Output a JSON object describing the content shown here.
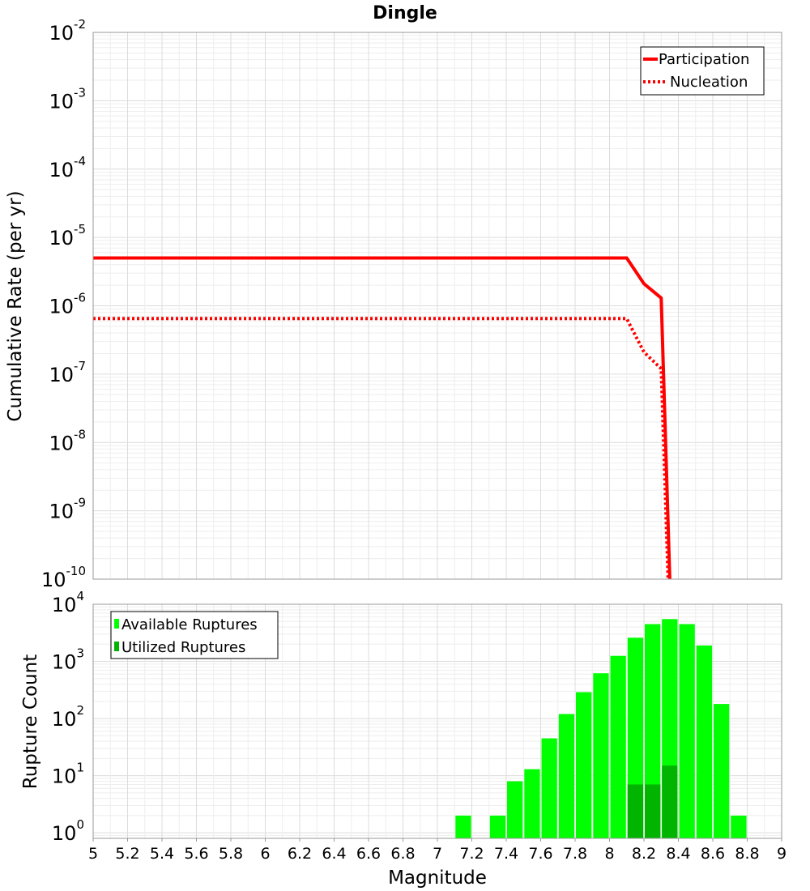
{
  "chart_data": [
    {
      "type": "line",
      "title": "Dingle",
      "xlabel": "Magnitude",
      "ylabel": "Cumulative Rate (per yr)",
      "yscale": "log",
      "xlim": [
        5,
        9
      ],
      "ylim": [
        1e-10,
        0.01
      ],
      "y_ticks": [
        {
          "base": "10",
          "exp": "-2"
        },
        {
          "base": "10",
          "exp": "-3"
        },
        {
          "base": "10",
          "exp": "-4"
        },
        {
          "base": "10",
          "exp": "-5"
        },
        {
          "base": "10",
          "exp": "-6"
        },
        {
          "base": "10",
          "exp": "-7"
        },
        {
          "base": "10",
          "exp": "-8"
        },
        {
          "base": "10",
          "exp": "-9"
        },
        {
          "base": "10",
          "exp": "-10"
        }
      ],
      "legend": [
        "Participation",
        "Nucleation"
      ],
      "legend_position": "top-right",
      "grid": true,
      "series": [
        {
          "name": "Participation",
          "style": "solid",
          "color": "#ff0000",
          "x": [
            5.0,
            8.1,
            8.2,
            8.3,
            8.35
          ],
          "y": [
            5e-06,
            5e-06,
            2.1e-06,
            1.3e-06,
            1e-10
          ]
        },
        {
          "name": "Nucleation",
          "style": "dotted",
          "color": "#ff0000",
          "x": [
            5.0,
            8.1,
            8.2,
            8.3,
            8.34
          ],
          "y": [
            6.5e-07,
            6.5e-07,
            2.1e-07,
            1.2e-07,
            1e-10
          ]
        }
      ]
    },
    {
      "type": "bar",
      "xlabel": "Magnitude",
      "ylabel": "Rupture Count",
      "yscale": "log",
      "xlim": [
        5,
        9
      ],
      "ylim": [
        0.8,
        10000
      ],
      "x_ticks": [
        "5",
        "5.2",
        "5.4",
        "5.6",
        "5.8",
        "6",
        "6.2",
        "6.4",
        "6.6",
        "6.8",
        "7",
        "7.2",
        "7.4",
        "7.6",
        "7.8",
        "8",
        "8.2",
        "8.4",
        "8.6",
        "8.8",
        "9"
      ],
      "y_ticks": [
        {
          "base": "10",
          "exp": "4"
        },
        {
          "base": "10",
          "exp": "3"
        },
        {
          "base": "10",
          "exp": "2"
        },
        {
          "base": "10",
          "exp": "1"
        },
        {
          "base": "10",
          "exp": "0"
        }
      ],
      "legend": [
        "Available Ruptures",
        "Utilized Ruptures"
      ],
      "legend_position": "top-left",
      "grid": true,
      "bar_width": 0.1,
      "series": [
        {
          "name": "Available Ruptures",
          "color": "#00ff00",
          "x": [
            7.15,
            7.35,
            7.45,
            7.55,
            7.65,
            7.75,
            7.85,
            7.95,
            8.05,
            8.15,
            8.25,
            8.35,
            8.45,
            8.55,
            8.65,
            8.75
          ],
          "values": [
            2,
            2,
            8,
            13,
            45,
            120,
            290,
            620,
            1250,
            2600,
            4500,
            5500,
            4500,
            1900,
            180,
            2
          ]
        },
        {
          "name": "Utilized Ruptures",
          "color": "#00b400",
          "x": [
            8.15,
            8.25,
            8.35
          ],
          "values": [
            7,
            7,
            15
          ]
        }
      ]
    }
  ]
}
